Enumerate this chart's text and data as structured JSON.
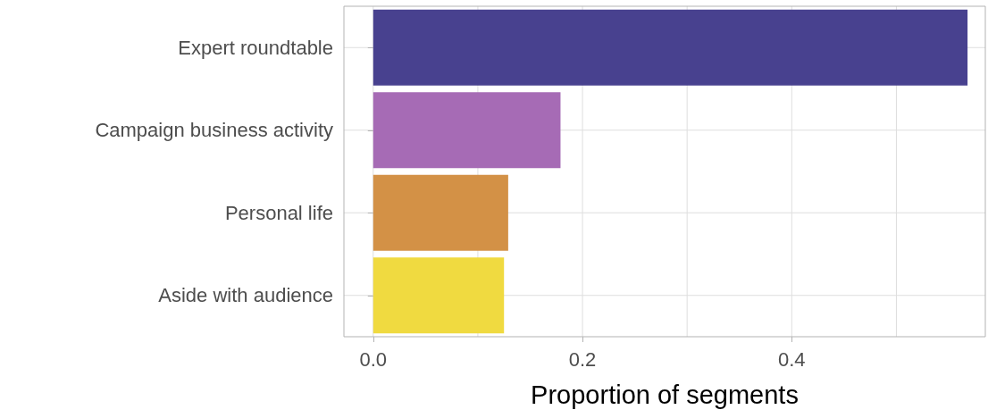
{
  "chart_data": {
    "type": "bar",
    "orientation": "horizontal",
    "xlabel": "Proportion of segments",
    "categories": [
      "Expert roundtable",
      "Campaign business activity",
      "Personal life",
      "Aside with audience"
    ],
    "values": [
      0.568,
      0.179,
      0.129,
      0.125
    ],
    "colors": [
      "#48418f",
      "#a66bb5",
      "#d39146",
      "#f0da40"
    ],
    "xlim": [
      -0.028,
      0.585
    ],
    "xticks": [
      {
        "value": 0,
        "label": "0.0"
      },
      {
        "value": 0.1,
        "label": null
      },
      0.2,
      {
        "value": 0.3,
        "label": null
      },
      0.4,
      {
        "value": 0.5,
        "label": null
      }
    ],
    "grid": true
  }
}
